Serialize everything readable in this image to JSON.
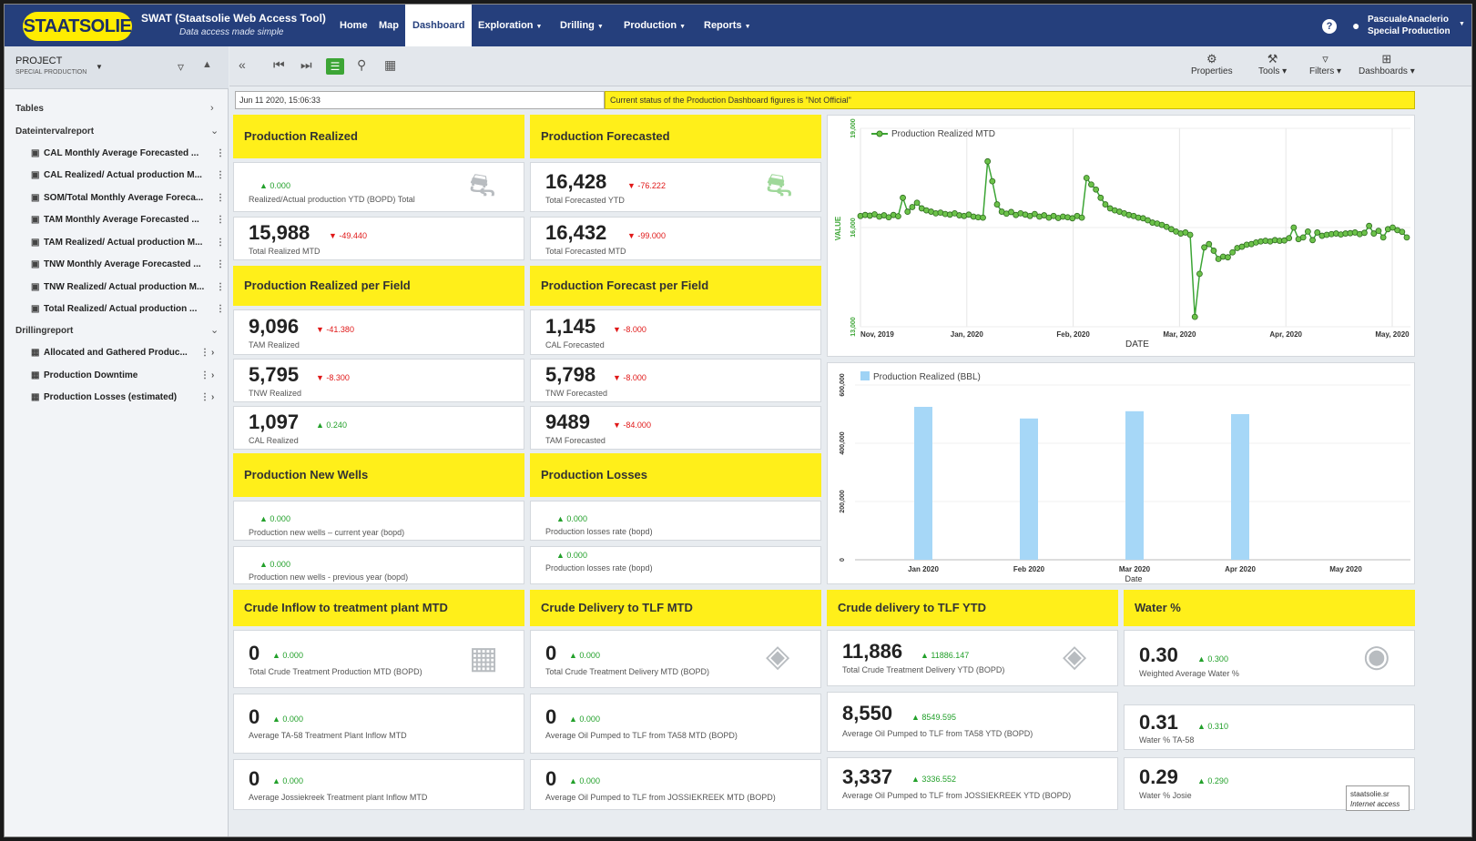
{
  "nav": {
    "logo": "STAATSOLIE",
    "app_title": "SWAT (Staatsolie Web Access Tool)",
    "app_subtitle": "Data access made simple",
    "items": [
      {
        "label": "Home"
      },
      {
        "label": "Map"
      },
      {
        "label": "Dashboard"
      },
      {
        "label": "Exploration"
      },
      {
        "label": "Drilling"
      },
      {
        "label": "Production"
      },
      {
        "label": "Reports"
      }
    ],
    "help": "?",
    "user_name": "PascualeAnaclerio",
    "user_role": "Special Production"
  },
  "sidebar": {
    "project_label": "PROJECT",
    "project_sub": "SPECIAL PRODUCTION",
    "sections": [
      {
        "label": "Tables"
      },
      {
        "label": "Dateintervalreport"
      },
      {
        "label": "Drillingreport"
      }
    ],
    "date_items": [
      {
        "label": "CAL Monthly Average Forecasted ..."
      },
      {
        "label": "CAL Realized/ Actual production M..."
      },
      {
        "label": "SOM/Total Monthly Average Foreca..."
      },
      {
        "label": "TAM Monthly Average Forecasted ..."
      },
      {
        "label": "TAM Realized/ Actual production M..."
      },
      {
        "label": "TNW Monthly Average Forecasted ..."
      },
      {
        "label": "TNW Realized/ Actual production M..."
      },
      {
        "label": "Total Realized/ Actual production ..."
      }
    ],
    "drill_items": [
      {
        "label": "Allocated and Gathered Produc..."
      },
      {
        "label": "Production Downtime"
      },
      {
        "label": "Production Losses (estimated)"
      }
    ]
  },
  "toolbar": {
    "properties": "Properties",
    "tools": "Tools",
    "filters": "Filters",
    "dashboards": "Dashboards"
  },
  "status": {
    "date": "Jun 11 2020, 15:06:33",
    "message": "Current status of the Production Dashboard figures is \"Not Official\""
  },
  "tiles": {
    "prod_realized": {
      "title": "Production Realized",
      "a": {
        "value": "",
        "delta": "0.000",
        "label": "Realized/Actual production YTD (BOPD) Total"
      },
      "b": {
        "value": "15,988",
        "delta": "-49.440",
        "label": "Total Realized MTD"
      }
    },
    "prod_forecasted": {
      "title": "Production Forecasted",
      "a": {
        "value": "16,428",
        "delta": "-76.222",
        "label": "Total Forecasted YTD"
      },
      "b": {
        "value": "16,432",
        "delta": "-99.000",
        "label": "Total Forecasted MTD"
      }
    },
    "realized_field": {
      "title": "Production Realized per Field",
      "a": {
        "value": "9,096",
        "delta": "-41.380",
        "label": "TAM Realized"
      },
      "b": {
        "value": "5,795",
        "delta": "-8.300",
        "label": "TNW Realized"
      },
      "c": {
        "value": "1,097",
        "delta": "0.240",
        "label": "CAL Realized"
      }
    },
    "forecast_field": {
      "title": "Production Forecast per Field",
      "a": {
        "value": "1,145",
        "delta": "-8.000",
        "label": "CAL Forecasted"
      },
      "b": {
        "value": "5,798",
        "delta": "-8.000",
        "label": "TNW Forecasted"
      },
      "c": {
        "value": "9489",
        "delta": "-84.000",
        "label": "TAM Forecasted"
      }
    },
    "new_wells": {
      "title": "Production New Wells",
      "a": {
        "delta": "0.000",
        "label": "Production new wells – current year (bopd)"
      },
      "b": {
        "delta": "0.000",
        "label": "Production new wells - previous year (bopd)"
      }
    },
    "losses": {
      "title": "Production Losses",
      "a": {
        "delta": "0.000",
        "label": "Production losses rate (bopd)"
      },
      "b": {
        "delta": "0.000",
        "label": "Production losses rate (bopd)"
      }
    },
    "crude_inflow": {
      "title": "Crude Inflow to treatment plant MTD",
      "a": {
        "value": "0",
        "delta": "0.000",
        "label": "Total Crude Treatment Production MTD (BOPD)"
      },
      "b": {
        "value": "0",
        "delta": "0.000",
        "label": "Average TA-58 Treatment Plant Inflow MTD"
      },
      "c": {
        "value": "0",
        "delta": "0.000",
        "label": "Average Jossiekreek Treatment plant Inflow MTD"
      }
    },
    "crude_mtd": {
      "title": "Crude Delivery to TLF MTD",
      "a": {
        "value": "0",
        "delta": "0.000",
        "label": "Total Crude Treatment Delivery MTD (BOPD)"
      },
      "b": {
        "value": "0",
        "delta": "0.000",
        "label": "Average Oil Pumped to TLF from TA58 MTD (BOPD)"
      },
      "c": {
        "value": "0",
        "delta": "0.000",
        "label": "Average Oil Pumped to TLF from JOSSIEKREEK MTD (BOPD)"
      }
    },
    "crude_ytd": {
      "title": "Crude delivery to TLF YTD",
      "a": {
        "value": "11,886",
        "delta": "11886.147",
        "label": "Total Crude Treatment Delivery YTD (BOPD)"
      },
      "b": {
        "value": "8,550",
        "delta": "8549.595",
        "label": "Average Oil Pumped to TLF from TA58 YTD (BOPD)"
      },
      "c": {
        "value": "3,337",
        "delta": "3336.552",
        "label": "Average Oil Pumped to TLF from JOSSIEKREEK YTD (BOPD)"
      }
    },
    "water": {
      "title": "Water %",
      "a": {
        "value": "0.30",
        "delta": "0.300",
        "label": "Weighted Average Water %"
      },
      "b": {
        "value": "0.31",
        "delta": "0.310",
        "label": "Water % TA-58"
      },
      "c": {
        "value": "0.29",
        "delta": "0.290",
        "label": "Water % Josie"
      }
    }
  },
  "badge": {
    "line1": "staatsolie.sr",
    "line2": "Internet access"
  },
  "chart_data": [
    {
      "type": "line",
      "legend": "Production Realized MTD",
      "xlabel": "DATE",
      "ylabel": "VALUE",
      "x_ticks": [
        "Nov, 2019",
        "Jan, 2020",
        "Feb, 2020",
        "Mar, 2020",
        "Apr, 2020",
        "May, 2020"
      ],
      "y_ticks": [
        "19,000",
        "16,000",
        "13,000"
      ],
      "ylim": [
        13000,
        19000
      ],
      "series": [
        {
          "name": "Production Realized MTD",
          "values": [
            16350,
            16380,
            16360,
            16400,
            16330,
            16370,
            16310,
            16380,
            16340,
            16900,
            16480,
            16620,
            16750,
            16580,
            16520,
            16480,
            16430,
            16450,
            16410,
            16390,
            16430,
            16370,
            16350,
            16390,
            16330,
            16310,
            16300,
            18000,
            17400,
            16700,
            16480,
            16420,
            16470,
            16380,
            16430,
            16390,
            16350,
            16410,
            16330,
            16370,
            16300,
            16350,
            16290,
            16330,
            16310,
            16280,
            16350,
            16300,
            17500,
            17300,
            17150,
            16900,
            16700,
            16580,
            16520,
            16480,
            16430,
            16380,
            16350,
            16300,
            16280,
            16220,
            16150,
            16120,
            16080,
            16020,
            15950,
            15880,
            15820,
            15850,
            15780,
            13300,
            14600,
            15400,
            15500,
            15300,
            15050,
            15120,
            15100,
            15250,
            15380,
            15420,
            15480,
            15500,
            15550,
            15580,
            15600,
            15580,
            15620,
            15600,
            15610,
            15680,
            16000,
            15650,
            15700,
            15880,
            15620,
            15850,
            15750,
            15780,
            15800,
            15820,
            15790,
            15820,
            15830,
            15850,
            15800,
            15840,
            16050,
            15820,
            15900,
            15700,
            15950,
            16000,
            15920,
            15870,
            15700
          ]
        }
      ]
    },
    {
      "type": "bar",
      "legend": "Production Realized (BBL)",
      "xlabel": "Date",
      "categories": [
        "Jan 2020",
        "Feb 2020",
        "Mar 2020",
        "Apr 2020",
        "May 2020"
      ],
      "values": [
        525000,
        485000,
        510000,
        500000,
        0
      ],
      "y_ticks": [
        "600,000",
        "400,000",
        "200,000",
        "0"
      ],
      "ylim": [
        0,
        600000
      ]
    }
  ]
}
